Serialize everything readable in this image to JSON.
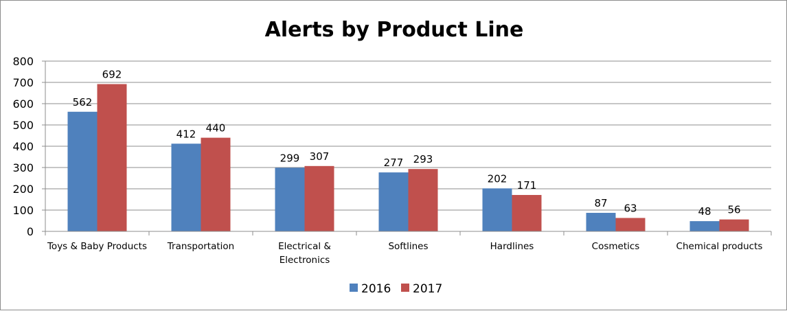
{
  "chart_data": {
    "type": "bar",
    "title": "Alerts by Product Line",
    "xlabel": "",
    "ylabel": "",
    "ylim": [
      0,
      800
    ],
    "yticks": [
      "0",
      "100",
      "200",
      "300",
      "400",
      "500",
      "600",
      "700",
      "800"
    ],
    "grid": true,
    "legend_position": "bottom",
    "categories": [
      [
        "Toys & Baby Products"
      ],
      [
        "Transportation"
      ],
      [
        "Electrical &",
        "Electronics"
      ],
      [
        "Softlines"
      ],
      [
        "Hardlines"
      ],
      [
        "Cosmetics"
      ],
      [
        "Chemical products"
      ]
    ],
    "series": [
      {
        "name": "2016",
        "color": "#4f81bd",
        "values": [
          562,
          412,
          299,
          277,
          202,
          87,
          48
        ]
      },
      {
        "name": "2017",
        "color": "#c0504d",
        "values": [
          692,
          440,
          307,
          293,
          171,
          63,
          56
        ]
      }
    ]
  }
}
